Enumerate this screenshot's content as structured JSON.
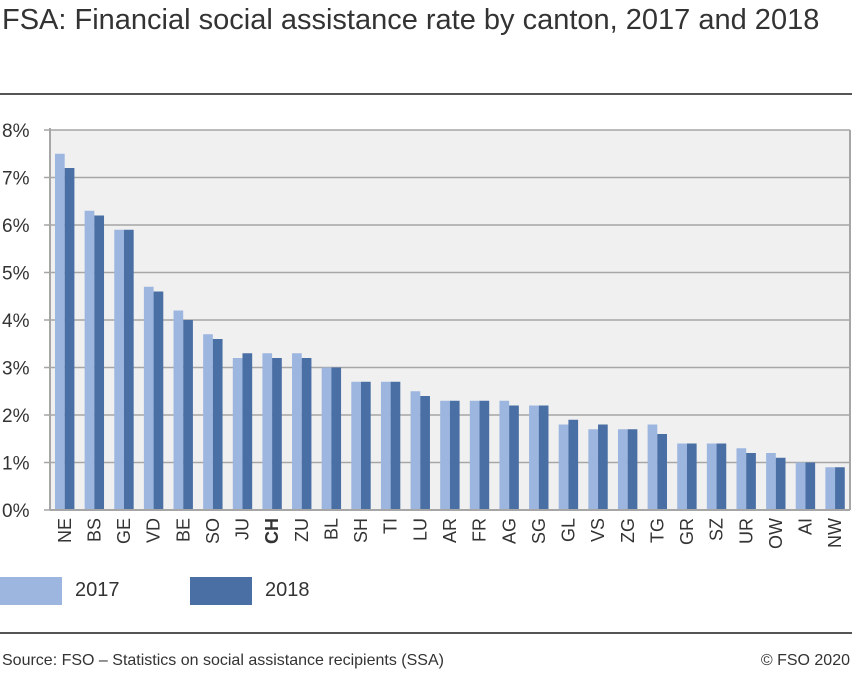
{
  "title": "FSA: Financial social assistance rate by canton, 2017 and 2018",
  "source": "Source: FSO – Statistics on social assistance recipients (SSA)",
  "copyright": "© FSO 2020",
  "chart_data": {
    "type": "bar",
    "title": "FSA: Financial social assistance rate by canton, 2017 and 2018",
    "categories": [
      "NE",
      "BS",
      "GE",
      "VD",
      "BE",
      "SO",
      "JU",
      "CH",
      "ZU",
      "BL",
      "SH",
      "TI",
      "LU",
      "AR",
      "FR",
      "AG",
      "SG",
      "GL",
      "VS",
      "ZG",
      "TG",
      "GR",
      "SZ",
      "UR",
      "OW",
      "AI",
      "NW"
    ],
    "highlight_category": "CH",
    "series": [
      {
        "name": "2017",
        "color": "#9db6df",
        "values": [
          7.5,
          6.3,
          5.9,
          4.7,
          4.2,
          3.7,
          3.2,
          3.3,
          3.3,
          3.0,
          2.7,
          2.7,
          2.5,
          2.3,
          2.3,
          2.3,
          2.2,
          1.8,
          1.7,
          1.7,
          1.8,
          1.4,
          1.4,
          1.3,
          1.2,
          1.0,
          0.9
        ]
      },
      {
        "name": "2018",
        "color": "#4a6fa5",
        "values": [
          7.2,
          6.2,
          5.9,
          4.6,
          4.0,
          3.6,
          3.3,
          3.2,
          3.2,
          3.0,
          2.7,
          2.7,
          2.4,
          2.3,
          2.3,
          2.2,
          2.2,
          1.9,
          1.8,
          1.7,
          1.6,
          1.4,
          1.4,
          1.2,
          1.1,
          1.0,
          0.9
        ]
      }
    ],
    "yticks": [
      "0%",
      "1%",
      "2%",
      "3%",
      "4%",
      "5%",
      "6%",
      "7%",
      "8%"
    ],
    "ylim": [
      0,
      8
    ],
    "yunit": "%",
    "grid": true,
    "plot_background": "#f0f0f0",
    "legend_position": "bottom-left"
  }
}
